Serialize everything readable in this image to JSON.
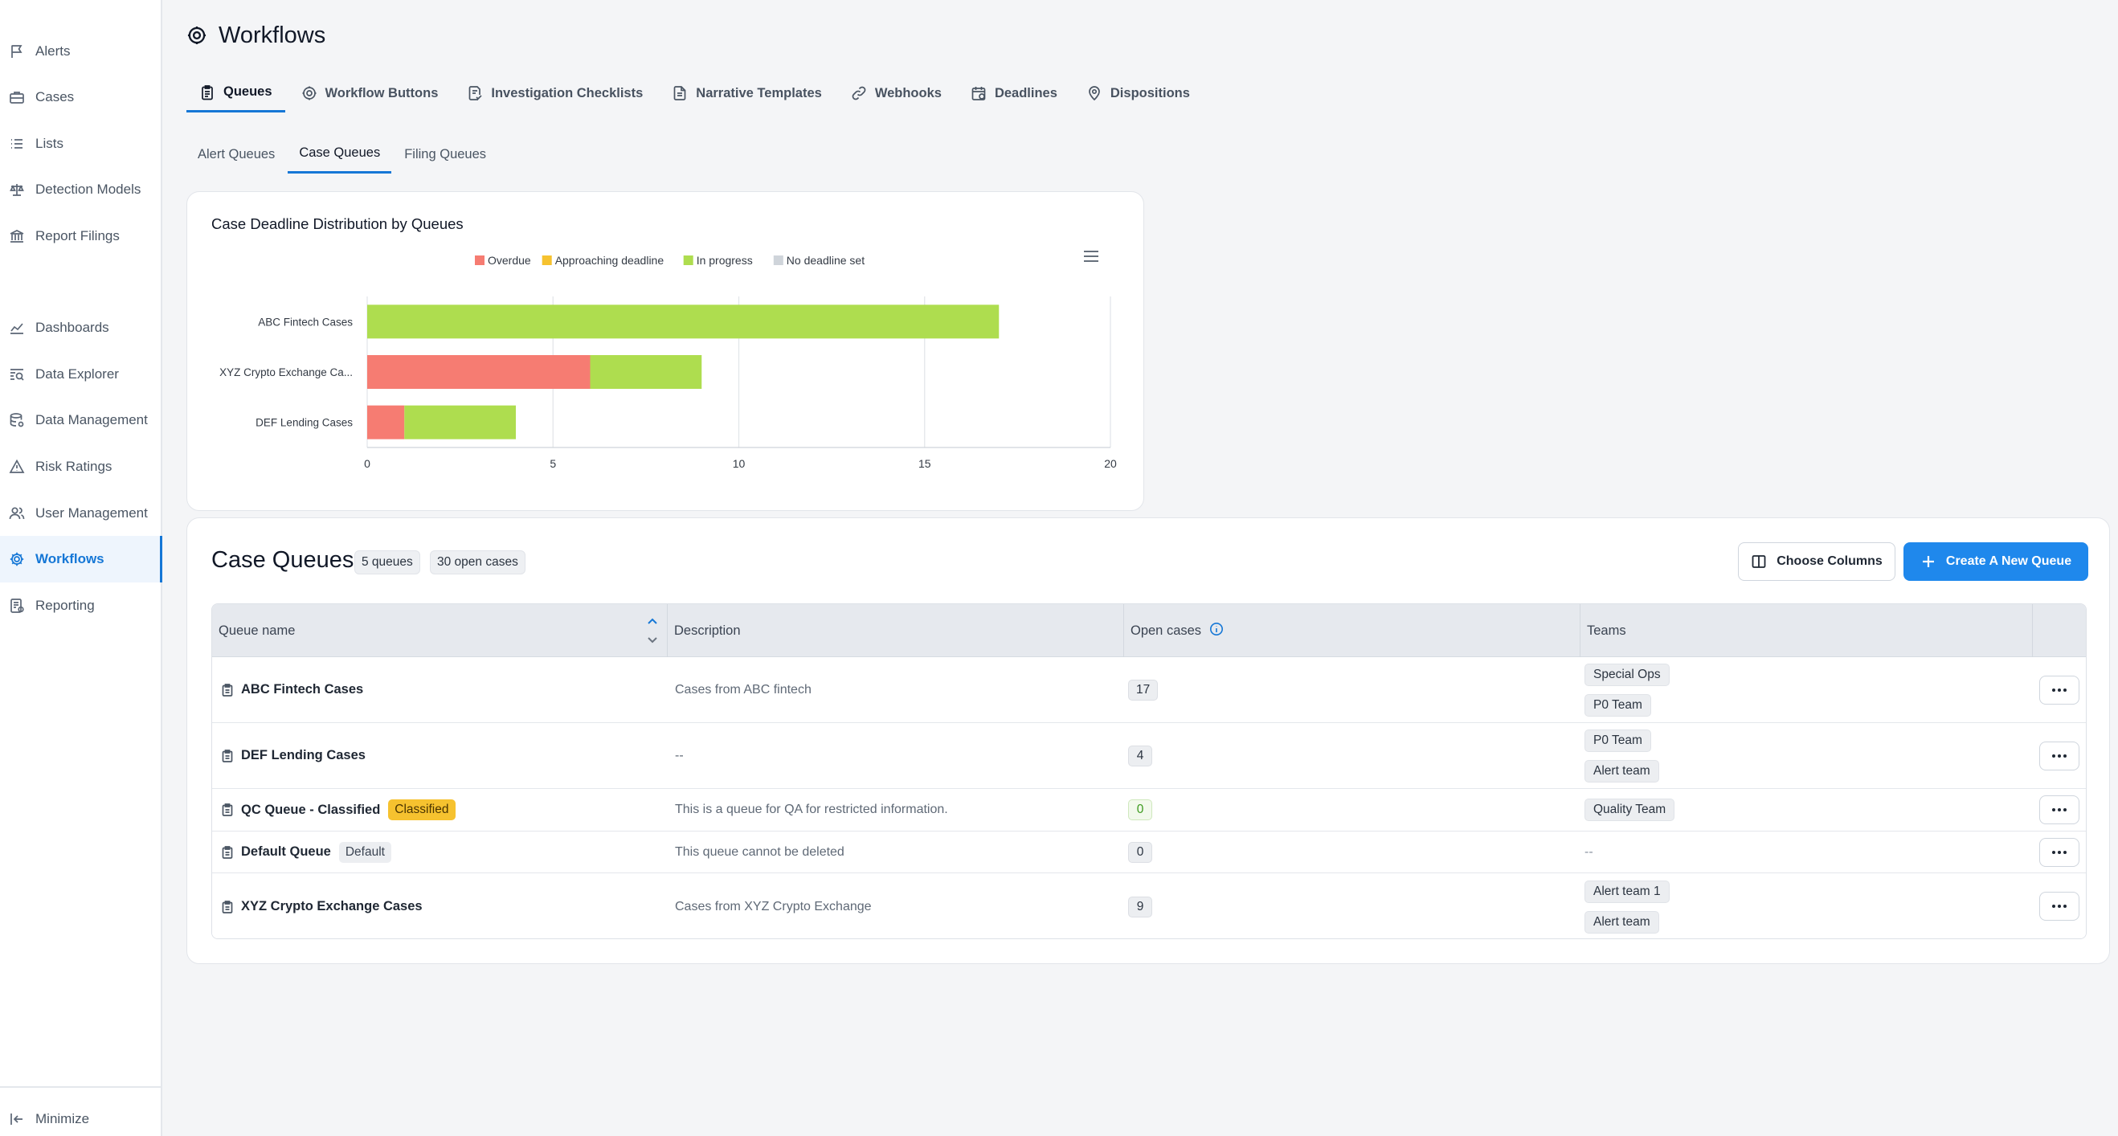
{
  "colors": {
    "accent": "#1577d6",
    "primary_button": "#1f88ec",
    "overdue": "#f67c72",
    "approaching": "#f6c22f",
    "in_progress": "#aedd4f",
    "no_deadline": "#cfd4da"
  },
  "sidebar": {
    "items": [
      {
        "label": "Alerts",
        "icon": "flag-icon"
      },
      {
        "label": "Cases",
        "icon": "briefcase-icon"
      },
      {
        "label": "Lists",
        "icon": "list-icon"
      },
      {
        "label": "Detection Models",
        "icon": "scale-icon"
      },
      {
        "label": "Report Filings",
        "icon": "bank-icon"
      },
      {
        "label": "Dashboards",
        "icon": "line-chart-icon"
      },
      {
        "label": "Data Explorer",
        "icon": "search-data-icon"
      },
      {
        "label": "Data Management",
        "icon": "database-gear-icon"
      },
      {
        "label": "Risk Ratings",
        "icon": "warning-icon"
      },
      {
        "label": "User Management",
        "icon": "users-icon"
      },
      {
        "label": "Workflows",
        "icon": "gear-icon",
        "active": true
      },
      {
        "label": "Reporting",
        "icon": "report-icon"
      }
    ],
    "minimize_label": "Minimize"
  },
  "header": {
    "title": "Workflows"
  },
  "main_tabs": [
    {
      "label": "Queues",
      "icon": "clipboard-icon",
      "active": true
    },
    {
      "label": "Workflow Buttons",
      "icon": "gear-icon"
    },
    {
      "label": "Investigation Checklists",
      "icon": "checklist-icon"
    },
    {
      "label": "Narrative Templates",
      "icon": "document-icon"
    },
    {
      "label": "Webhooks",
      "icon": "link-icon"
    },
    {
      "label": "Deadlines",
      "icon": "calendar-icon"
    },
    {
      "label": "Dispositions",
      "icon": "location-pin-icon"
    }
  ],
  "sub_tabs": [
    {
      "label": "Alert Queues"
    },
    {
      "label": "Case Queues",
      "active": true
    },
    {
      "label": "Filing Queues"
    }
  ],
  "chart_data": {
    "type": "bar",
    "orientation": "horizontal",
    "stacked": true,
    "title": "Case Deadline Distribution by Queues",
    "categories": [
      "ABC Fintech Cases",
      "XYZ Crypto Exchange Ca...",
      "DEF Lending Cases"
    ],
    "series": [
      {
        "name": "Overdue",
        "values": [
          0,
          6,
          1
        ]
      },
      {
        "name": "Approaching deadline",
        "values": [
          0,
          0,
          0
        ]
      },
      {
        "name": "In progress",
        "values": [
          17,
          3,
          3
        ]
      },
      {
        "name": "No deadline set",
        "values": [
          0,
          0,
          0
        ]
      }
    ],
    "xlim": [
      0,
      20
    ],
    "x_ticks": [
      0,
      5,
      10,
      15,
      20
    ],
    "grid": true,
    "legend": "top"
  },
  "table_section": {
    "title": "Case Queues",
    "queues_count_label": "5 queues",
    "open_cases_label": "30 open cases",
    "choose_columns_label": "Choose Columns",
    "create_label": "Create A New Queue",
    "columns": [
      "Queue name",
      "Description",
      "Open cases",
      "Teams"
    ],
    "rows": [
      {
        "name": "ABC Fintech Cases",
        "tag": "",
        "description": "Cases from ABC fintech",
        "open_cases": "17",
        "teams": [
          "Special Ops",
          "P0 Team"
        ]
      },
      {
        "name": "DEF Lending Cases",
        "tag": "",
        "description": "--",
        "open_cases": "4",
        "teams": [
          "P0 Team",
          "Alert team"
        ]
      },
      {
        "name": "QC Queue - Classified",
        "tag": "Classified",
        "description": "This is a queue for QA for restricted information.",
        "open_cases": "0",
        "teams": [
          "Quality Team"
        ]
      },
      {
        "name": "Default Queue",
        "tag": "Default",
        "description": "This queue cannot be deleted",
        "open_cases": "0",
        "teams": [],
        "teams_empty": "--"
      },
      {
        "name": "XYZ Crypto Exchange Cases",
        "tag": "",
        "description": "Cases from XYZ Crypto Exchange",
        "open_cases": "9",
        "teams": [
          "Alert team 1",
          "Alert team"
        ]
      }
    ]
  }
}
